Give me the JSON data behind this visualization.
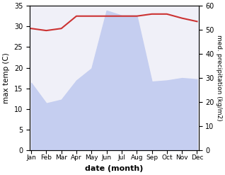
{
  "months": [
    "Jan",
    "Feb",
    "Mar",
    "Apr",
    "May",
    "Jun",
    "Jul",
    "Aug",
    "Sep",
    "Oct",
    "Nov",
    "Dec"
  ],
  "temp_max": [
    29.5,
    29.0,
    29.5,
    32.5,
    32.5,
    32.5,
    32.5,
    32.5,
    33.0,
    33.0,
    32.0,
    31.2
  ],
  "precip_kg": [
    28,
    19.5,
    21,
    29,
    34,
    58,
    56,
    56,
    28.5,
    29,
    30,
    29.5
  ],
  "temp_ylim": [
    0,
    35
  ],
  "precip_ylim": [
    0,
    60
  ],
  "temp_yticks": [
    0,
    5,
    10,
    15,
    20,
    25,
    30,
    35
  ],
  "precip_yticks": [
    0,
    10,
    20,
    30,
    40,
    50,
    60
  ],
  "temp_color": "#cc3333",
  "precip_fill_color": "#c5cef0",
  "xlabel": "date (month)",
  "ylabel_left": "max temp (C)",
  "ylabel_right": "med. precipitation (kg/m2)",
  "bg_color": "#f0f0f8"
}
